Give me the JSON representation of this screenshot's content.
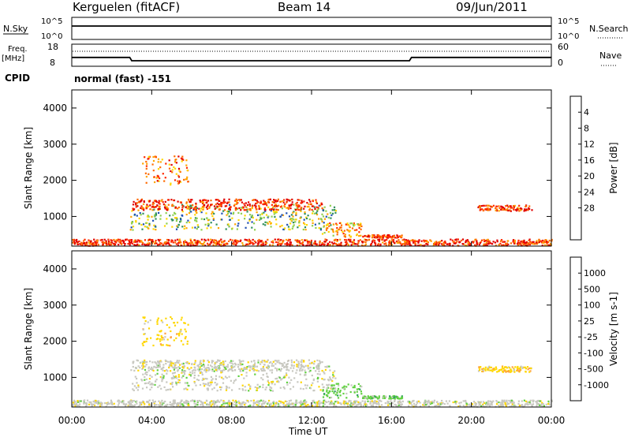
{
  "header": {
    "station": "Kerguelen (fitACF)",
    "beam": "Beam 14",
    "date": "09/Jun/2011"
  },
  "time_axis": {
    "label": "Time UT",
    "ticks": [
      "00:00",
      "04:00",
      "08:00",
      "12:00",
      "16:00",
      "20:00",
      "00:00"
    ],
    "tick_hours": [
      0,
      4,
      8,
      12,
      16,
      20,
      24
    ],
    "range_hours": [
      0,
      24
    ]
  },
  "top_panel": {
    "left_label": "N.Sky",
    "right_label": "N.Search",
    "left_ticks": [
      "10^5",
      "10^0"
    ],
    "right_ticks": [
      "10^5",
      "10^0"
    ]
  },
  "freq_panel": {
    "label_line1": "Freq.",
    "label_line2": "[MHz]",
    "left_ticks": [
      "18",
      "8"
    ],
    "right_ticks": [
      "60",
      "0"
    ],
    "right_label": "Nave"
  },
  "cpid": {
    "label": "CPID",
    "text": "normal (fast) -151"
  },
  "power_panel": {
    "ylabel": "Slant Range [km]",
    "yticks": [
      1000,
      2000,
      3000,
      4000
    ],
    "ylim": [
      180,
      4500
    ],
    "colorbar_label": "Power [dB]",
    "colorbar_ticks": [
      "4",
      "8",
      "12",
      "16",
      "20",
      "24",
      "28"
    ],
    "colors": [
      "#0000ff",
      "#1f4fb4",
      "#2f8f5a",
      "#8fd04f",
      "#ffd700",
      "#ffa500",
      "#ff6a00",
      "#ff2a00",
      "#e00000"
    ]
  },
  "velocity_panel": {
    "ylabel": "Slant Range [km]",
    "yticks": [
      1000,
      2000,
      3000,
      4000
    ],
    "ylim": [
      180,
      4500
    ],
    "colorbar_label": "Velocity [m s-1]",
    "colorbar_ticks": [
      "1000",
      "500",
      "100",
      "25",
      "-25",
      "-100",
      "-500",
      "-1000"
    ],
    "colors": [
      "#1f3fbf",
      "#3f7fbf",
      "#2f9f5f",
      "#5fd03f",
      "#c8c8c0",
      "#ffd700",
      "#ffa040",
      "#ff6020",
      "#e00000"
    ]
  },
  "chart_data": {
    "type": "heatmap",
    "x_unit": "hours UT",
    "y_unit": "km",
    "frequency_mhz": [
      {
        "x": 0,
        "y": 12
      },
      {
        "x": 2.9,
        "y": 12
      },
      {
        "x": 3.0,
        "y": 10.5
      },
      {
        "x": 16.9,
        "y": 10.5
      },
      {
        "x": 17.0,
        "y": 12
      },
      {
        "x": 24,
        "y": 12
      }
    ],
    "nsky_level": "10^5",
    "scatter_regions": [
      {
        "x_start": 2.9,
        "x_end": 13.2,
        "y_center": 1000,
        "y_spread": 350,
        "power_db": 24,
        "velocity": "25"
      },
      {
        "x_start": 3.0,
        "x_end": 12.5,
        "y_center": 1350,
        "y_spread": 150,
        "power_db": 8,
        "velocity": "25"
      },
      {
        "x_start": 3.5,
        "x_end": 5.8,
        "y_center": 2300,
        "y_spread": 400,
        "power_db": 12,
        "velocity": "-100"
      },
      {
        "x_start": 12.5,
        "x_end": 14.5,
        "y_center": 650,
        "y_spread": 200,
        "power_db": 16,
        "velocity": "100"
      },
      {
        "x_start": 14.5,
        "x_end": 16.5,
        "y_center": 470,
        "y_spread": 40,
        "power_db": 8,
        "velocity": "100"
      },
      {
        "x_start": 20.3,
        "x_end": 23.0,
        "y_center": 1250,
        "y_spread": 80,
        "power_db": 8,
        "velocity": "-100"
      },
      {
        "x_start": 0.0,
        "x_end": 24.0,
        "y_center": 300,
        "y_spread": 90,
        "power_db": 8,
        "velocity": "-25"
      }
    ]
  }
}
